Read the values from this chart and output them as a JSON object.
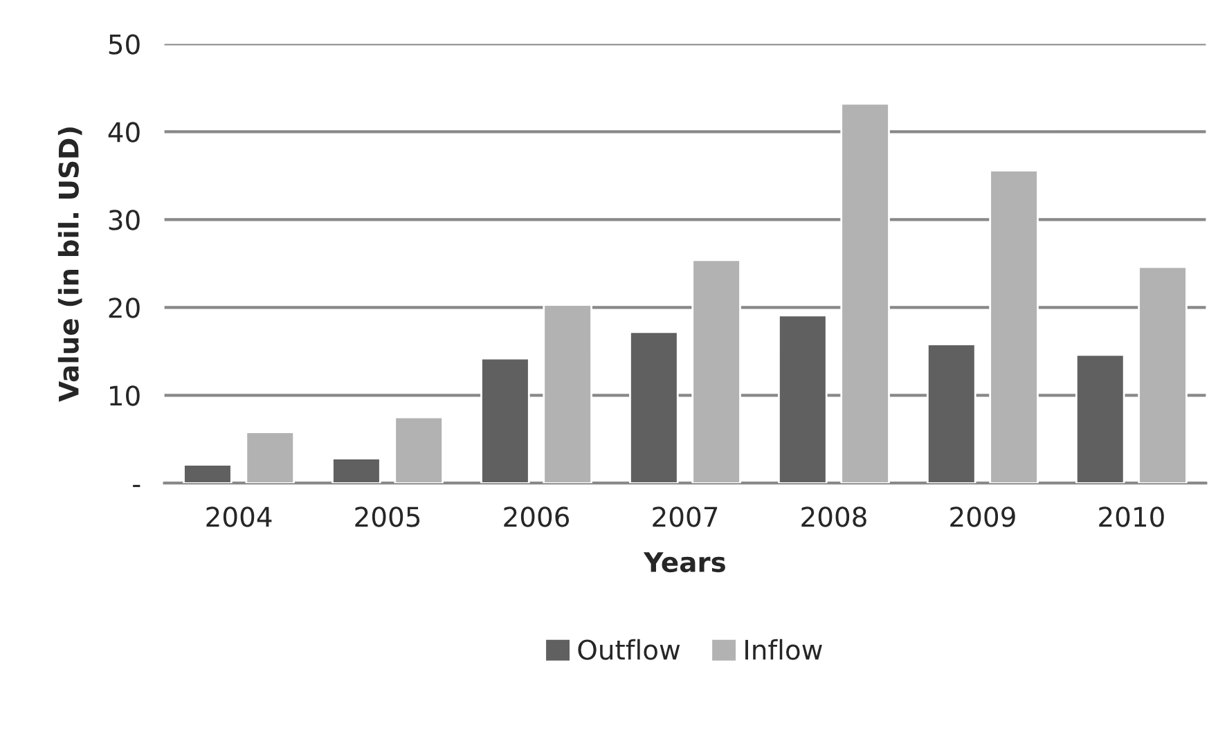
{
  "chart_data": {
    "type": "bar",
    "xlabel": "Years",
    "ylabel": "Value (in bil. USD)",
    "categories": [
      "2004",
      "2005",
      "2006",
      "2007",
      "2008",
      "2009",
      "2010"
    ],
    "series": [
      {
        "name": "Outflow",
        "color": "#606060",
        "values": [
          2.1,
          2.8,
          14.2,
          17.2,
          19.1,
          15.8,
          14.6
        ]
      },
      {
        "name": "Inflow",
        "color": "#b2b2b2",
        "values": [
          5.8,
          7.5,
          20.3,
          25.4,
          43.2,
          35.6,
          24.6
        ]
      }
    ],
    "ylim": [
      0,
      50
    ],
    "yticks": [
      {
        "value": 0,
        "label": "-"
      },
      10,
      20,
      30,
      40,
      50
    ],
    "grid": "y",
    "legend": "bottom"
  }
}
